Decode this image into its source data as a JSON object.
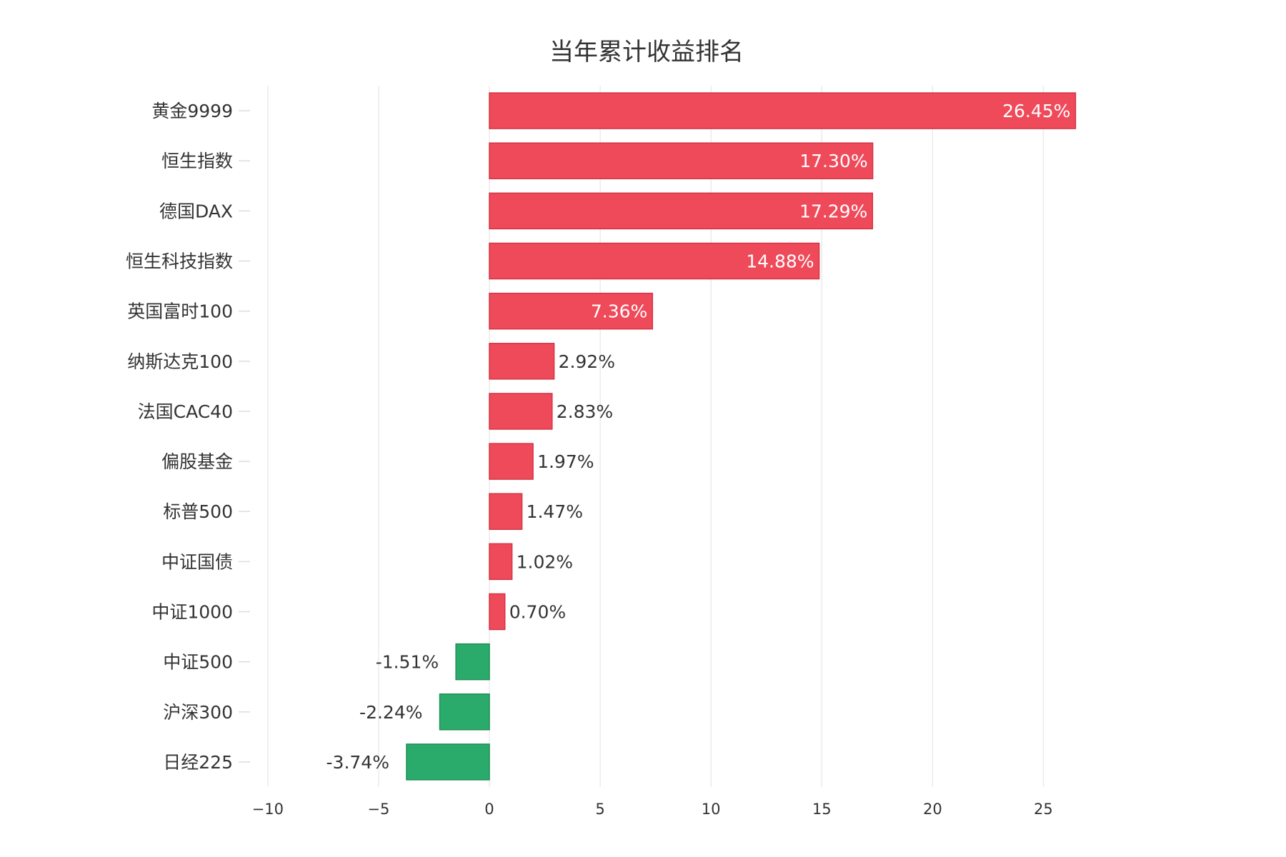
{
  "chart_data": {
    "type": "bar",
    "orientation": "horizontal",
    "title": "当年累计收益排名",
    "xlabel": "",
    "ylabel": "",
    "categories": [
      "黄金9999",
      "恒生指数",
      "德国DAX",
      "恒生科技指数",
      "英国富时100",
      "纳斯达克100",
      "法国CAC40",
      "偏股基金",
      "标普500",
      "中证国债",
      "中证1000",
      "中证500",
      "沪深300",
      "日经225"
    ],
    "values": [
      26.45,
      17.3,
      17.29,
      14.88,
      7.36,
      2.92,
      2.83,
      1.97,
      1.47,
      1.02,
      0.7,
      -1.51,
      -2.24,
      -3.74
    ],
    "value_labels": [
      "26.45%",
      "17.30%",
      "17.29%",
      "14.88%",
      "7.36%",
      "2.92%",
      "2.83%",
      "1.97%",
      "1.47%",
      "1.02%",
      "0.70%",
      "-1.51%",
      "-2.24%",
      "-3.74%"
    ],
    "xlim": [
      -10.8,
      29.5
    ],
    "x_ticks": [
      -10,
      -5,
      0,
      5,
      10,
      15,
      20,
      25
    ],
    "x_tick_labels": [
      "−10",
      "−5",
      "0",
      "5",
      "10",
      "15",
      "20",
      "25"
    ],
    "grid": true,
    "legend": false,
    "colors": {
      "positive": "#ef4a5a",
      "positive_edge": "#d43545",
      "negative": "#2bab6b",
      "negative_edge": "#1f8f55",
      "label_inside": "#ffffff",
      "label_outside": "#333333"
    }
  }
}
